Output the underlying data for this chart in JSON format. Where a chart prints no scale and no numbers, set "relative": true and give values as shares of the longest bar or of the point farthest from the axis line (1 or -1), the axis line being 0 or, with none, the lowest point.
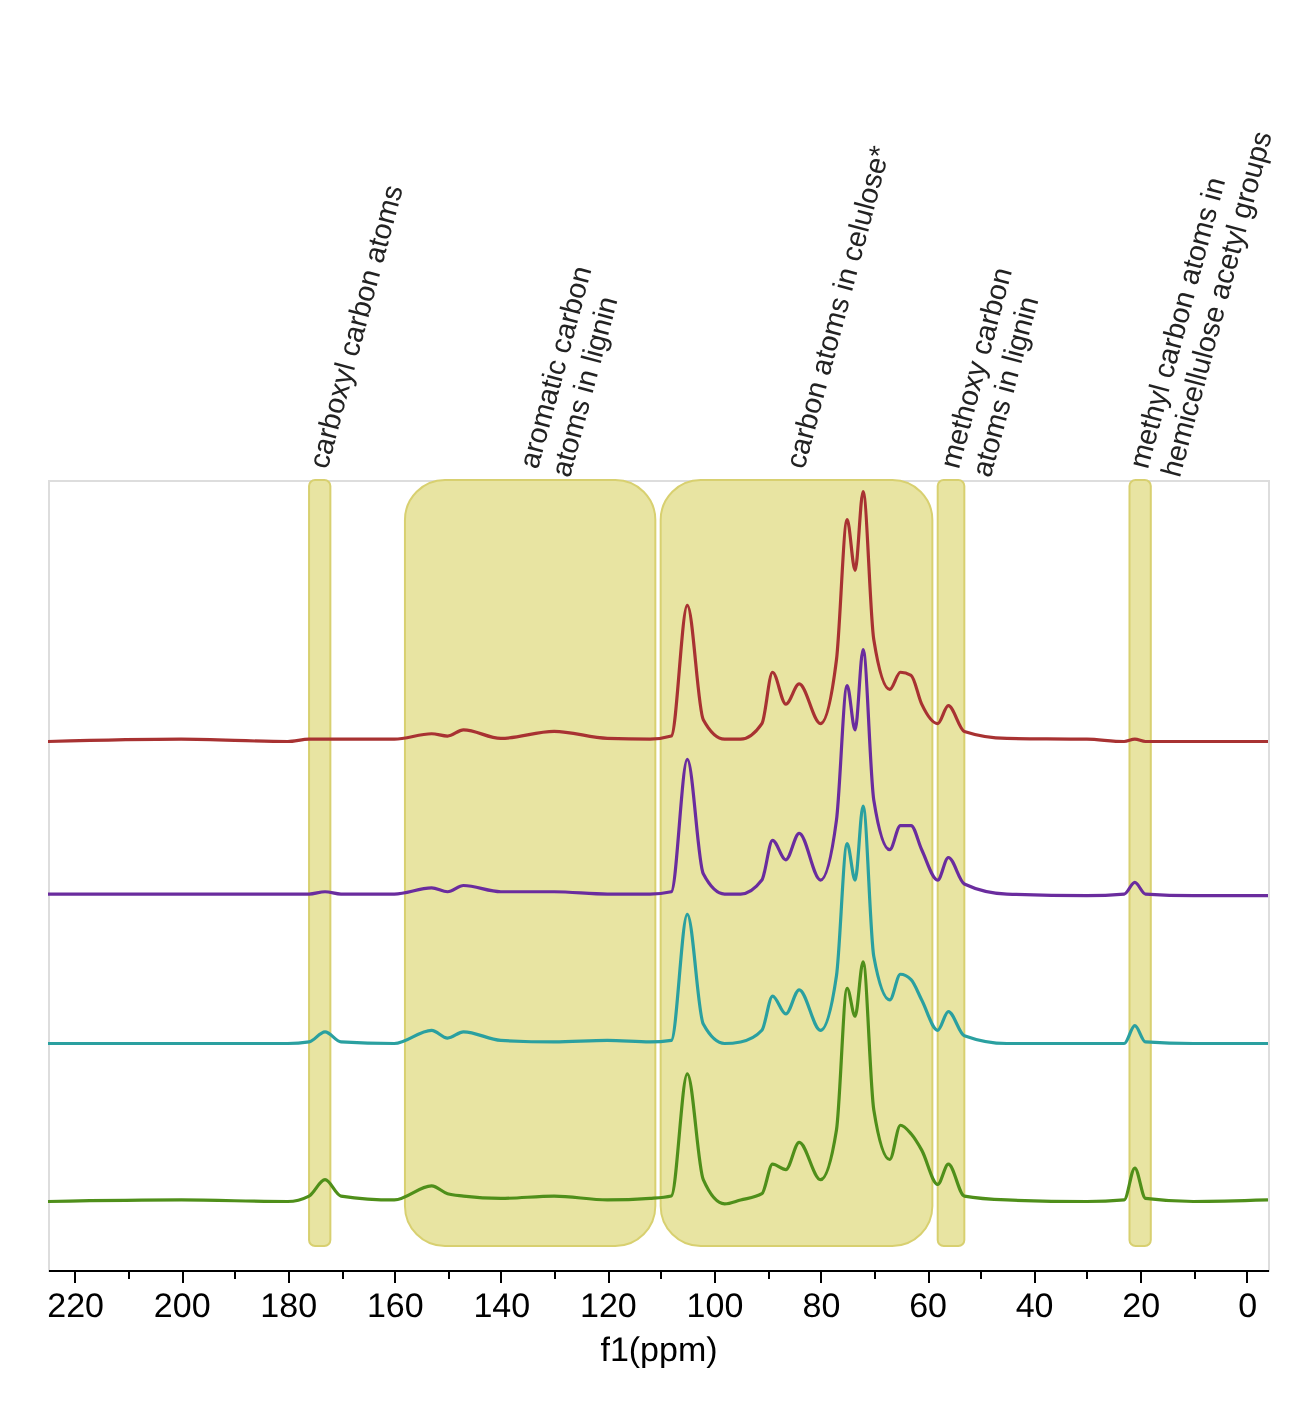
{
  "chart_data": {
    "type": "line",
    "relative": true,
    "xlabel": "f1(ppm)",
    "xlim": [
      225,
      -4
    ],
    "xticks": [
      220,
      {
        "value": 210,
        "label": null
      },
      200,
      {
        "value": 190,
        "label": null
      },
      180,
      {
        "value": 170,
        "label": null
      },
      160,
      {
        "value": 150,
        "label": null
      },
      140,
      {
        "value": 130,
        "label": null
      },
      120,
      {
        "value": 110,
        "label": null
      },
      100,
      {
        "value": 90,
        "label": null
      },
      80,
      {
        "value": 70,
        "label": null
      },
      60,
      {
        "value": 50,
        "label": null
      },
      40,
      {
        "value": 30,
        "label": null
      },
      20,
      {
        "value": 10,
        "label": null
      },
      0
    ],
    "x": [
      225,
      200,
      180,
      176,
      173,
      170,
      160,
      153,
      150,
      147,
      140,
      130,
      120,
      112,
      108,
      105,
      102,
      98,
      95,
      91,
      89,
      86.5,
      84,
      80,
      77,
      75,
      73.5,
      72,
      70,
      67,
      65,
      63,
      61,
      58,
      56,
      53,
      45,
      30,
      23,
      21,
      19,
      10,
      -4
    ],
    "series": [
      {
        "color": "#a83232",
        "values": [
          0.679,
          0.682,
          0.679,
          0.682,
          0.682,
          0.682,
          0.682,
          0.689,
          0.686,
          0.694,
          0.683,
          0.692,
          0.683,
          0.682,
          0.686,
          0.854,
          0.707,
          0.682,
          0.682,
          0.702,
          0.768,
          0.727,
          0.753,
          0.702,
          0.784,
          0.964,
          0.899,
          1.0,
          0.81,
          0.746,
          0.768,
          0.764,
          0.727,
          0.702,
          0.725,
          0.692,
          0.683,
          0.682,
          0.679,
          0.682,
          0.679,
          0.679,
          0.679
        ]
      },
      {
        "color": "#6a2c9e",
        "values": [
          0.483,
          0.483,
          0.483,
          0.483,
          0.486,
          0.483,
          0.483,
          0.491,
          0.486,
          0.494,
          0.486,
          0.486,
          0.483,
          0.483,
          0.486,
          0.656,
          0.509,
          0.483,
          0.483,
          0.501,
          0.552,
          0.527,
          0.561,
          0.501,
          0.578,
          0.751,
          0.694,
          0.797,
          0.604,
          0.54,
          0.571,
          0.571,
          0.54,
          0.501,
          0.53,
          0.496,
          0.483,
          0.481,
          0.483,
          0.498,
          0.483,
          0.481,
          0.481
        ]
      },
      {
        "color": "#2aa0a0",
        "values": [
          0.291,
          0.291,
          0.291,
          0.293,
          0.306,
          0.293,
          0.291,
          0.308,
          0.298,
          0.306,
          0.295,
          0.293,
          0.295,
          0.293,
          0.295,
          0.457,
          0.316,
          0.291,
          0.293,
          0.308,
          0.352,
          0.329,
          0.36,
          0.308,
          0.378,
          0.548,
          0.501,
          0.596,
          0.403,
          0.347,
          0.38,
          0.373,
          0.347,
          0.308,
          0.332,
          0.301,
          0.291,
          0.291,
          0.291,
          0.314,
          0.293,
          0.291,
          0.291
        ]
      },
      {
        "color": "#4f8f1a",
        "values": [
          0.088,
          0.09,
          0.088,
          0.095,
          0.116,
          0.095,
          0.09,
          0.108,
          0.098,
          0.095,
          0.092,
          0.095,
          0.09,
          0.092,
          0.095,
          0.252,
          0.116,
          0.085,
          0.09,
          0.098,
          0.136,
          0.129,
          0.164,
          0.116,
          0.18,
          0.362,
          0.326,
          0.396,
          0.206,
          0.142,
          0.186,
          0.175,
          0.154,
          0.11,
          0.136,
          0.095,
          0.09,
          0.088,
          0.09,
          0.131,
          0.092,
          0.088,
          0.09
        ]
      }
    ],
    "bands": [
      {
        "axis": "x",
        "from": 176,
        "to": 172,
        "label": "carboxyl carbon atoms",
        "color": "#e8e4a2"
      },
      {
        "axis": "x",
        "from": 158,
        "to": 111,
        "label": "aromatic carbon atoms in lignin",
        "color": "#e8e4a2"
      },
      {
        "axis": "x",
        "from": 110,
        "to": 59,
        "label": "carbon atoms in celulose*",
        "color": "#e8e4a2"
      },
      {
        "axis": "x",
        "from": 58,
        "to": 53,
        "label": "methoxy carbon atoms in lignin",
        "color": "#e8e4a2"
      },
      {
        "axis": "x",
        "from": 22,
        "to": 18,
        "label": "methyl carbon atoms in hemicellulose acetyl groups",
        "color": "#e8e4a2"
      }
    ]
  }
}
